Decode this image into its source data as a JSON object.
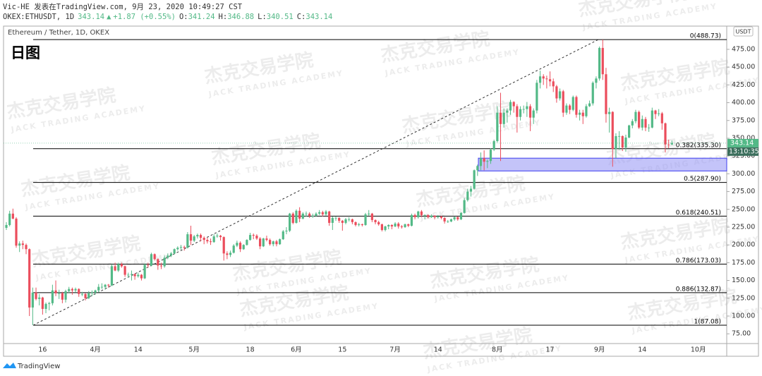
{
  "header": {
    "author": "Vic-HE 发表在TradingView.com, 9月 23, 2020 10:49:27 CST",
    "symbol": "OKEX:ETHUSDT, 1D",
    "last": "343.14",
    "arrow": "▲",
    "change": "+1.87 (+0.55%)",
    "ohlc": [
      {
        "key": "O:",
        "value": "341.24"
      },
      {
        "key": "H:",
        "value": "346.88"
      },
      {
        "key": "L:",
        "value": "340.51"
      },
      {
        "key": "C:",
        "value": "343.14"
      }
    ]
  },
  "footer": {
    "brand": "TradingView"
  },
  "watermark": {
    "cn": "杰克交易学院",
    "en": "JACK TRADING ACADEMY"
  },
  "chart_data": {
    "type": "candlestick",
    "title": "Ethereum / Tether, 1D, OKEX",
    "annotation": "日图",
    "currency": "USDT",
    "up_color": "#53b987",
    "down_color": "#eb4d5c",
    "ylim": [
      61.3,
      507.7
    ],
    "yticks": [
      {
        "value": 75,
        "label": "75.00"
      },
      {
        "value": 100,
        "label": "100.00"
      },
      {
        "value": 125,
        "label": "125.00"
      },
      {
        "value": 150,
        "label": "150.00"
      },
      {
        "value": 175,
        "label": "175.00"
      },
      {
        "value": 200,
        "label": "200.00"
      },
      {
        "value": 225,
        "label": "225.00"
      },
      {
        "value": 250,
        "label": "250.00"
      },
      {
        "value": 275,
        "label": "275.00"
      },
      {
        "value": 300,
        "label": "300.00"
      },
      {
        "value": 325,
        "label": "325.00"
      },
      {
        "value": 350,
        "label": "350.00"
      },
      {
        "value": 375,
        "label": "375.00"
      },
      {
        "value": 400,
        "label": "400.00"
      },
      {
        "value": 425,
        "label": "425.00"
      },
      {
        "value": 450,
        "label": "450.00"
      },
      {
        "value": 475,
        "label": "475.00"
      }
    ],
    "last_price": {
      "value": 343.14,
      "label": "343.14",
      "countdown": "13:10:35"
    },
    "fib": [
      {
        "value": 488.73,
        "label": "0(488.73)"
      },
      {
        "value": 335.3,
        "label": "0.382(335.30)"
      },
      {
        "value": 287.9,
        "label": "0.5(287.90)"
      },
      {
        "value": 240.51,
        "label": "0.618(240.51)"
      },
      {
        "value": 173.03,
        "label": "0.786(173.03)"
      },
      {
        "value": 132.87,
        "label": "0.886(132.87)"
      },
      {
        "value": 87.08,
        "label": "1(87.08)"
      }
    ],
    "zone": {
      "low": 304,
      "high": 322
    },
    "categories": [
      null,
      null,
      null,
      null,
      null,
      null,
      null,
      null,
      null,
      null,
      null,
      "16",
      null,
      null,
      null,
      null,
      null,
      null,
      null,
      null,
      null,
      null,
      null,
      null,
      null,
      null,
      null,
      "4月",
      null,
      null,
      null,
      null,
      null,
      null,
      null,
      null,
      null,
      null,
      null,
      null,
      "14",
      null,
      null,
      null,
      null,
      null,
      null,
      null,
      null,
      null,
      null,
      null,
      null,
      null,
      null,
      null,
      null,
      "5月",
      null,
      null,
      null,
      null,
      null,
      null,
      null,
      null,
      null,
      null,
      null,
      null,
      null,
      null,
      null,
      null,
      "18",
      null,
      null,
      null,
      null,
      null,
      null,
      null,
      null,
      null,
      null,
      null,
      null,
      null,
      "6月",
      null,
      null,
      null,
      null,
      null,
      null,
      null,
      null,
      null,
      null,
      null,
      null,
      null,
      "15",
      null,
      null,
      null,
      null,
      null,
      null,
      null,
      null,
      null,
      null,
      null,
      null,
      null,
      null,
      null,
      "7月",
      null,
      null,
      null,
      null,
      null,
      null,
      null,
      null,
      null,
      null,
      null,
      null,
      "14",
      null,
      null,
      null,
      null,
      null,
      null,
      null,
      null,
      null,
      null,
      null,
      null,
      null,
      null,
      null,
      null,
      null,
      "8月",
      null,
      null,
      null,
      null,
      null,
      null,
      null,
      null,
      null,
      null,
      null,
      null,
      null,
      null,
      null,
      "17",
      null,
      null,
      null,
      null,
      null,
      null,
      null,
      null,
      null,
      null,
      null,
      null,
      null,
      null,
      "9月",
      null,
      null,
      null,
      null,
      null,
      null,
      null,
      null,
      null,
      null,
      null,
      null,
      "14",
      null,
      null,
      null,
      null,
      null,
      null,
      null,
      null,
      null,
      null,
      null,
      null,
      null,
      null,
      null,
      null,
      "10月"
    ],
    "candles": [
      [
        224,
        232,
        221,
        228
      ],
      [
        228,
        248,
        226,
        244
      ],
      [
        244,
        251,
        236,
        237
      ],
      [
        237,
        239,
        196,
        199
      ],
      [
        199,
        205,
        190,
        202
      ],
      [
        202,
        206,
        194,
        200
      ],
      [
        200,
        202,
        187,
        194
      ],
      [
        194,
        195,
        100,
        112
      ],
      [
        112,
        140,
        87.08,
        133
      ],
      [
        133,
        140,
        122,
        124
      ],
      [
        124,
        131,
        115,
        126
      ],
      [
        126,
        127,
        102,
        110
      ],
      [
        110,
        119,
        104,
        117
      ],
      [
        117,
        120,
        108,
        118
      ],
      [
        118,
        144,
        115,
        136
      ],
      [
        136,
        150,
        128,
        132
      ],
      [
        132,
        137,
        124,
        132
      ],
      [
        132,
        134,
        118,
        123
      ],
      [
        123,
        137,
        119,
        135
      ],
      [
        135,
        141,
        132,
        138
      ],
      [
        138,
        140,
        130,
        136
      ],
      [
        136,
        140,
        133,
        138
      ],
      [
        138,
        139,
        127,
        131
      ],
      [
        131,
        134,
        128,
        131
      ],
      [
        131,
        132,
        122,
        125
      ],
      [
        125,
        135,
        124,
        132
      ],
      [
        132,
        136,
        128,
        133
      ],
      [
        133,
        137,
        130,
        136
      ],
      [
        136,
        145,
        133,
        141
      ],
      [
        141,
        146,
        138,
        141
      ],
      [
        141,
        145,
        137,
        144
      ],
      [
        144,
        145,
        140,
        143
      ],
      [
        143,
        173,
        142,
        170
      ],
      [
        170,
        175,
        163,
        164
      ],
      [
        164,
        175,
        162,
        173
      ],
      [
        173,
        175,
        168,
        170
      ],
      [
        170,
        171,
        155,
        158
      ],
      [
        158,
        161,
        154,
        158
      ],
      [
        158,
        164,
        150,
        159
      ],
      [
        159,
        160,
        151,
        156
      ],
      [
        156,
        161,
        154,
        158
      ],
      [
        158,
        159,
        150,
        153
      ],
      [
        153,
        174,
        152,
        172
      ],
      [
        172,
        175,
        168,
        171
      ],
      [
        171,
        189,
        170,
        187
      ],
      [
        187,
        188,
        178,
        180
      ],
      [
        180,
        181,
        165,
        171
      ],
      [
        171,
        175,
        166,
        170
      ],
      [
        170,
        185,
        168,
        182
      ],
      [
        182,
        188,
        180,
        185
      ],
      [
        185,
        190,
        183,
        188
      ],
      [
        188,
        195,
        187,
        194
      ],
      [
        194,
        198,
        192,
        196
      ],
      [
        196,
        200,
        193,
        197
      ],
      [
        197,
        199,
        192,
        196
      ],
      [
        196,
        218,
        195,
        215
      ],
      [
        215,
        227,
        200,
        206
      ],
      [
        206,
        214,
        204,
        212
      ],
      [
        212,
        216,
        209,
        214
      ],
      [
        214,
        216,
        205,
        210
      ],
      [
        210,
        212,
        201,
        207
      ],
      [
        207,
        210,
        202,
        205
      ],
      [
        205,
        209,
        200,
        204
      ],
      [
        204,
        215,
        203,
        212
      ],
      [
        212,
        216,
        210,
        213
      ],
      [
        213,
        214,
        206,
        211
      ],
      [
        211,
        212,
        178,
        188
      ],
      [
        188,
        191,
        180,
        186
      ],
      [
        186,
        192,
        183,
        189
      ],
      [
        189,
        201,
        188,
        199
      ],
      [
        199,
        206,
        197,
        203
      ],
      [
        203,
        205,
        190,
        194
      ],
      [
        194,
        201,
        193,
        200
      ],
      [
        200,
        208,
        199,
        207
      ],
      [
        207,
        217,
        206,
        214
      ],
      [
        214,
        216,
        208,
        213
      ],
      [
        213,
        215,
        207,
        209
      ],
      [
        209,
        211,
        194,
        198
      ],
      [
        198,
        210,
        197,
        209
      ],
      [
        209,
        213,
        205,
        207
      ],
      [
        207,
        209,
        199,
        201
      ],
      [
        201,
        206,
        198,
        205
      ],
      [
        205,
        207,
        198,
        201
      ],
      [
        201,
        209,
        200,
        208
      ],
      [
        208,
        221,
        207,
        219
      ],
      [
        219,
        225,
        215,
        220
      ],
      [
        220,
        245,
        218,
        244
      ],
      [
        244,
        246,
        229,
        231
      ],
      [
        231,
        250,
        230,
        248
      ],
      [
        248,
        253,
        232,
        237
      ],
      [
        237,
        246,
        236,
        244
      ],
      [
        244,
        247,
        240,
        244
      ],
      [
        244,
        246,
        238,
        241
      ],
      [
        241,
        244,
        238,
        241
      ],
      [
        241,
        246,
        240,
        244
      ],
      [
        244,
        249,
        242,
        246
      ],
      [
        246,
        248,
        240,
        243
      ],
      [
        243,
        249,
        241,
        247
      ],
      [
        247,
        248,
        227,
        231
      ],
      [
        231,
        240,
        221,
        238
      ],
      [
        238,
        240,
        234,
        238
      ],
      [
        238,
        239,
        231,
        234
      ],
      [
        234,
        235,
        220,
        231
      ],
      [
        231,
        238,
        229,
        236
      ],
      [
        236,
        239,
        233,
        236
      ],
      [
        236,
        237,
        229,
        232
      ],
      [
        232,
        233,
        226,
        228
      ],
      [
        228,
        231,
        226,
        229
      ],
      [
        229,
        230,
        226,
        228
      ],
      [
        228,
        245,
        227,
        243
      ],
      [
        243,
        249,
        241,
        244
      ],
      [
        244,
        245,
        232,
        235
      ],
      [
        235,
        236,
        229,
        232
      ],
      [
        232,
        234,
        227,
        229
      ],
      [
        229,
        230,
        219,
        221
      ],
      [
        221,
        227,
        219,
        226
      ],
      [
        226,
        229,
        222,
        228
      ],
      [
        228,
        229,
        222,
        226
      ],
      [
        226,
        232,
        225,
        230
      ],
      [
        230,
        232,
        223,
        226
      ],
      [
        226,
        228,
        223,
        225
      ],
      [
        225,
        230,
        224,
        229
      ],
      [
        229,
        230,
        225,
        227
      ],
      [
        227,
        244,
        226,
        242
      ],
      [
        242,
        244,
        236,
        239
      ],
      [
        239,
        248,
        237,
        247
      ],
      [
        247,
        249,
        239,
        242
      ],
      [
        242,
        243,
        236,
        242
      ],
      [
        242,
        243,
        237,
        239
      ],
      [
        239,
        243,
        238,
        241
      ],
      [
        241,
        242,
        236,
        239
      ],
      [
        239,
        242,
        237,
        240
      ],
      [
        240,
        241,
        236,
        238
      ],
      [
        238,
        239,
        230,
        233
      ],
      [
        233,
        235,
        231,
        233
      ],
      [
        233,
        237,
        232,
        236
      ],
      [
        236,
        240,
        234,
        239
      ],
      [
        239,
        240,
        234,
        236
      ],
      [
        236,
        246,
        235,
        245
      ],
      [
        245,
        266,
        244,
        263
      ],
      [
        263,
        279,
        261,
        275
      ],
      [
        275,
        283,
        268,
        279
      ],
      [
        279,
        306,
        278,
        305
      ],
      [
        305,
        313,
        297,
        311
      ],
      [
        311,
        330,
        305,
        322
      ],
      [
        322,
        333,
        305,
        317
      ],
      [
        317,
        320,
        308,
        318
      ],
      [
        318,
        336,
        314,
        334
      ],
      [
        334,
        348,
        332,
        346
      ],
      [
        346,
        395,
        344,
        386
      ],
      [
        386,
        414,
        318,
        370
      ],
      [
        370,
        392,
        365,
        386
      ],
      [
        386,
        392,
        372,
        389
      ],
      [
        389,
        404,
        383,
        401
      ],
      [
        401,
        402,
        386,
        395
      ],
      [
        395,
        398,
        358,
        380
      ],
      [
        380,
        395,
        375,
        391
      ],
      [
        391,
        396,
        385,
        391
      ],
      [
        391,
        401,
        380,
        395
      ],
      [
        395,
        398,
        360,
        379
      ],
      [
        379,
        392,
        370,
        389
      ],
      [
        389,
        432,
        385,
        428
      ],
      [
        428,
        445,
        420,
        437
      ],
      [
        437,
        440,
        425,
        434
      ],
      [
        434,
        438,
        420,
        433
      ],
      [
        433,
        444,
        423,
        430
      ],
      [
        430,
        434,
        415,
        423
      ],
      [
        423,
        425,
        400,
        406
      ],
      [
        406,
        420,
        403,
        416
      ],
      [
        416,
        418,
        380,
        386
      ],
      [
        386,
        399,
        383,
        396
      ],
      [
        396,
        398,
        384,
        390
      ],
      [
        390,
        410,
        388,
        408
      ],
      [
        408,
        410,
        379,
        383
      ],
      [
        383,
        390,
        375,
        386
      ],
      [
        386,
        390,
        370,
        381
      ],
      [
        381,
        398,
        379,
        395
      ],
      [
        395,
        403,
        394,
        399
      ],
      [
        399,
        430,
        396,
        428
      ],
      [
        428,
        437,
        420,
        434
      ],
      [
        434,
        479,
        431,
        477
      ],
      [
        477,
        488.73,
        432,
        440
      ],
      [
        440,
        449,
        372,
        384
      ],
      [
        384,
        393,
        358,
        387
      ],
      [
        387,
        388,
        310,
        335
      ],
      [
        335,
        357,
        322,
        353
      ],
      [
        353,
        360,
        334,
        353
      ],
      [
        353,
        354,
        332,
        337
      ],
      [
        337,
        355,
        331,
        351
      ],
      [
        351,
        369,
        350,
        368
      ],
      [
        368,
        377,
        364,
        374
      ],
      [
        374,
        390,
        371,
        387
      ],
      [
        387,
        389,
        363,
        365
      ],
      [
        365,
        382,
        361,
        377
      ],
      [
        377,
        380,
        360,
        365
      ],
      [
        365,
        370,
        359,
        365
      ],
      [
        365,
        393,
        364,
        389
      ],
      [
        389,
        390,
        377,
        384
      ],
      [
        384,
        391,
        381,
        385
      ],
      [
        385,
        387,
        362,
        371
      ],
      [
        371,
        372,
        330,
        341.27
      ],
      [
        341.27,
        348,
        336,
        341.24
      ],
      [
        341.24,
        346.88,
        340.51,
        343.14
      ],
      null,
      null,
      null,
      null,
      null,
      null,
      null,
      null
    ]
  }
}
